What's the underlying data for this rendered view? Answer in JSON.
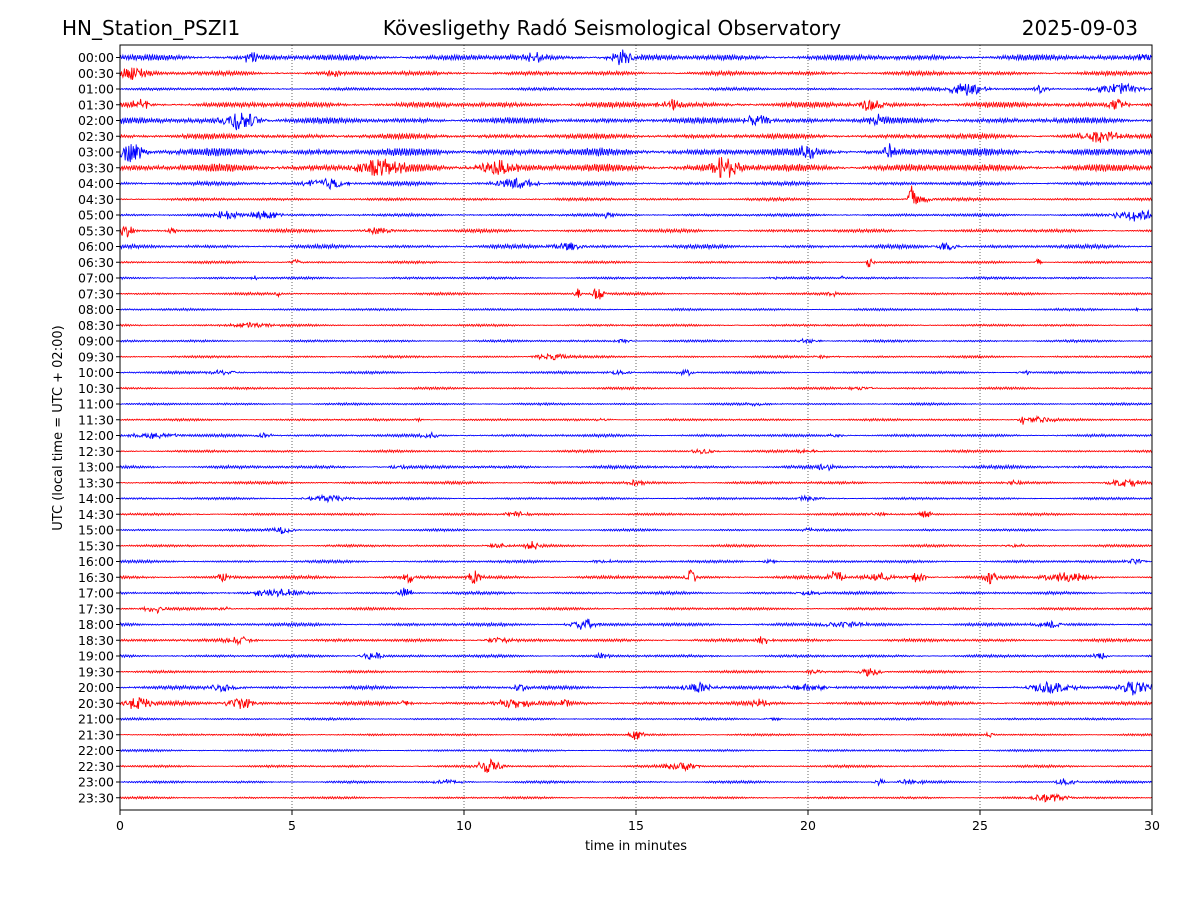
{
  "header": {
    "station": "HN_Station_PSZI1",
    "observatory": "Kövesligethy Radó Seismological Observatory",
    "date": "2025-09-03"
  },
  "chart_data": {
    "type": "line",
    "subtype": "helicorder",
    "title": "Kövesligethy Radó Seismological Observatory",
    "xlabel": "time in minutes",
    "ylabel": "UTC (local time = UTC + 02:00)",
    "xlim": [
      0,
      30
    ],
    "x_ticks": [
      "0",
      "5",
      "10",
      "15",
      "20",
      "25",
      "30"
    ],
    "grid": "vertical dotted lines at 5-minute intervals",
    "trace_colors": [
      "#0000ff",
      "#ff0000"
    ],
    "rows": [
      {
        "label": "00:00",
        "color": "#0000ff",
        "noise": 0.9,
        "events": [
          [
            14.6,
            0.9,
            0.5
          ],
          [
            29.8,
            0.7,
            0.3
          ],
          [
            3.8,
            0.6,
            0.4
          ],
          [
            12,
            0.5,
            0.5
          ]
        ]
      },
      {
        "label": "00:30",
        "color": "#ff0000",
        "noise": 0.5,
        "events": [
          [
            0.4,
            0.8,
            0.6
          ],
          [
            6.2,
            0.4,
            0.3
          ]
        ]
      },
      {
        "label": "01:00",
        "color": "#0000ff",
        "noise": 0.2,
        "events": [
          [
            24.6,
            0.8,
            0.8
          ],
          [
            29,
            0.8,
            0.8
          ],
          [
            26.8,
            0.5,
            0.3
          ]
        ]
      },
      {
        "label": "01:30",
        "color": "#ff0000",
        "noise": 0.8,
        "events": [
          [
            0.6,
            0.6,
            0.4
          ],
          [
            16,
            0.6,
            0.5
          ],
          [
            21.8,
            0.7,
            0.5
          ],
          [
            29,
            0.7,
            0.4
          ]
        ]
      },
      {
        "label": "02:00",
        "color": "#0000ff",
        "noise": 0.9,
        "events": [
          [
            3.5,
            1.3,
            0.7
          ],
          [
            18.5,
            0.7,
            0.5
          ],
          [
            22,
            0.6,
            0.4
          ]
        ]
      },
      {
        "label": "02:30",
        "color": "#ff0000",
        "noise": 0.7,
        "events": [
          [
            28.5,
            0.7,
            0.8
          ]
        ]
      },
      {
        "label": "03:00",
        "color": "#0000ff",
        "noise": 1.3,
        "events": [
          [
            0.3,
            1.2,
            0.6
          ],
          [
            20,
            0.7,
            0.4
          ],
          [
            22.4,
            0.8,
            0.3
          ]
        ]
      },
      {
        "label": "03:30",
        "color": "#ff0000",
        "noise": 1.3,
        "events": [
          [
            17.6,
            1.4,
            0.5
          ],
          [
            7.5,
            1.0,
            1.0
          ],
          [
            11,
            0.9,
            0.8
          ]
        ]
      },
      {
        "label": "04:00",
        "color": "#0000ff",
        "noise": 0.4,
        "events": [
          [
            6,
            0.7,
            0.8
          ],
          [
            11.5,
            0.7,
            0.8
          ]
        ]
      },
      {
        "label": "04:30",
        "color": "#ff0000",
        "noise": 0.2,
        "events": [
          [
            23.05,
            1.9,
            0.18
          ],
          [
            23.3,
            0.4,
            0.4
          ]
        ]
      },
      {
        "label": "05:00",
        "color": "#0000ff",
        "noise": 0.2,
        "events": [
          [
            4.2,
            0.6,
            0.6
          ],
          [
            29.5,
            0.8,
            0.8
          ],
          [
            14.2,
            0.4,
            0.2
          ],
          [
            3.1,
            0.5,
            0.5
          ]
        ]
      },
      {
        "label": "05:30",
        "color": "#ff0000",
        "noise": 0.3,
        "events": [
          [
            0.2,
            0.8,
            0.3
          ],
          [
            1.5,
            0.5,
            0.2
          ],
          [
            7.5,
            0.4,
            0.6
          ]
        ]
      },
      {
        "label": "06:00",
        "color": "#0000ff",
        "noise": 0.4,
        "events": [
          [
            13,
            0.5,
            0.6
          ],
          [
            24,
            0.5,
            0.5
          ]
        ]
      },
      {
        "label": "06:30",
        "color": "#ff0000",
        "noise": 0.1,
        "events": [
          [
            21.8,
            1.0,
            0.12
          ],
          [
            5.1,
            0.4,
            0.2
          ],
          [
            26.7,
            0.5,
            0.12
          ]
        ]
      },
      {
        "label": "07:00",
        "color": "#0000ff",
        "noise": 0.1,
        "events": [
          [
            3.9,
            0.4,
            0.1
          ],
          [
            21,
            0.4,
            0.1
          ],
          [
            19,
            0.2,
            0.2
          ]
        ]
      },
      {
        "label": "07:30",
        "color": "#ff0000",
        "noise": 0.1,
        "events": [
          [
            13.9,
            1.1,
            0.2
          ],
          [
            13.3,
            0.8,
            0.12
          ],
          [
            4.6,
            0.4,
            0.1
          ],
          [
            20.7,
            0.4,
            0.15
          ]
        ]
      },
      {
        "label": "08:00",
        "color": "#0000ff",
        "noise": 0.08,
        "events": [
          [
            29.6,
            0.3,
            0.1
          ]
        ]
      },
      {
        "label": "08:30",
        "color": "#ff0000",
        "noise": 0.08,
        "events": [
          [
            3.8,
            0.35,
            0.8
          ]
        ]
      },
      {
        "label": "09:00",
        "color": "#0000ff",
        "noise": 0.1,
        "events": [
          [
            14.6,
            0.3,
            0.3
          ],
          [
            20,
            0.25,
            0.5
          ]
        ]
      },
      {
        "label": "09:30",
        "color": "#ff0000",
        "noise": 0.08,
        "events": [
          [
            12.5,
            0.45,
            0.7
          ],
          [
            20.5,
            0.2,
            0.5
          ]
        ]
      },
      {
        "label": "10:00",
        "color": "#0000ff",
        "noise": 0.1,
        "events": [
          [
            3,
            0.3,
            0.6
          ],
          [
            14.5,
            0.3,
            0.5
          ],
          [
            16.5,
            0.3,
            0.4
          ],
          [
            26.3,
            0.3,
            0.3
          ]
        ]
      },
      {
        "label": "10:30",
        "color": "#ff0000",
        "noise": 0.06,
        "events": [
          [
            21.5,
            0.15,
            0.6
          ]
        ]
      },
      {
        "label": "11:00",
        "color": "#0000ff",
        "noise": 0.06,
        "events": [
          [
            18.5,
            0.15,
            0.5
          ]
        ]
      },
      {
        "label": "11:30",
        "color": "#ff0000",
        "noise": 0.06,
        "events": [
          [
            26.2,
            1.0,
            0.1
          ],
          [
            26.7,
            0.4,
            0.6
          ],
          [
            8.7,
            0.2,
            0.2
          ],
          [
            14,
            0.2,
            0.3
          ]
        ]
      },
      {
        "label": "12:00",
        "color": "#0000ff",
        "noise": 0.2,
        "events": [
          [
            1,
            0.35,
            0.9
          ],
          [
            9,
            0.45,
            0.3
          ],
          [
            4.2,
            0.4,
            0.3
          ],
          [
            20.8,
            0.3,
            0.3
          ]
        ]
      },
      {
        "label": "12:30",
        "color": "#ff0000",
        "noise": 0.1,
        "events": [
          [
            17,
            0.3,
            0.5
          ],
          [
            20,
            0.2,
            0.5
          ]
        ]
      },
      {
        "label": "13:00",
        "color": "#0000ff",
        "noise": 0.3,
        "events": [
          [
            8.1,
            0.3,
            0.3
          ],
          [
            20.5,
            0.35,
            0.3
          ]
        ]
      },
      {
        "label": "13:30",
        "color": "#ff0000",
        "noise": 0.2,
        "events": [
          [
            15,
            0.4,
            0.3
          ],
          [
            29.2,
            0.5,
            0.6
          ],
          [
            26,
            0.3,
            0.3
          ]
        ]
      },
      {
        "label": "14:00",
        "color": "#0000ff",
        "noise": 0.1,
        "events": [
          [
            6,
            0.4,
            0.8
          ],
          [
            20,
            0.3,
            0.5
          ]
        ]
      },
      {
        "label": "14:30",
        "color": "#ff0000",
        "noise": 0.1,
        "events": [
          [
            11.5,
            0.3,
            0.5
          ],
          [
            23.4,
            0.4,
            0.3
          ],
          [
            22,
            0.2,
            0.5
          ]
        ]
      },
      {
        "label": "15:00",
        "color": "#0000ff",
        "noise": 0.06,
        "events": [
          [
            4.7,
            0.5,
            0.4
          ],
          [
            20,
            0.3,
            0.2
          ]
        ]
      },
      {
        "label": "15:30",
        "color": "#ff0000",
        "noise": 0.1,
        "events": [
          [
            12,
            0.55,
            0.3
          ],
          [
            11,
            0.3,
            0.5
          ],
          [
            26,
            0.2,
            0.4
          ]
        ]
      },
      {
        "label": "16:00",
        "color": "#0000ff",
        "noise": 0.15,
        "events": [
          [
            29.5,
            0.35,
            0.4
          ],
          [
            18.9,
            0.3,
            0.3
          ],
          [
            14,
            0.2,
            0.6
          ]
        ]
      },
      {
        "label": "16:30",
        "color": "#ff0000",
        "noise": 0.3,
        "events": [
          [
            8.4,
            1.0,
            0.2
          ],
          [
            10.3,
            1.1,
            0.25
          ],
          [
            16.6,
            1.1,
            0.25
          ],
          [
            20.8,
            0.9,
            0.35
          ],
          [
            23.2,
            0.8,
            0.3
          ],
          [
            25.3,
            1.0,
            0.25
          ],
          [
            27.5,
            0.6,
            0.9
          ],
          [
            3,
            0.5,
            0.3
          ],
          [
            22,
            0.5,
            0.6
          ]
        ]
      },
      {
        "label": "17:00",
        "color": "#0000ff",
        "noise": 0.2,
        "events": [
          [
            4.5,
            0.5,
            1.0
          ],
          [
            8.3,
            0.7,
            0.3
          ],
          [
            20,
            0.3,
            0.5
          ]
        ]
      },
      {
        "label": "17:30",
        "color": "#ff0000",
        "noise": 0.15,
        "events": [
          [
            1,
            0.55,
            0.4
          ],
          [
            3,
            0.25,
            0.3
          ]
        ]
      },
      {
        "label": "18:00",
        "color": "#0000ff",
        "noise": 0.3,
        "events": [
          [
            13.5,
            0.75,
            0.5
          ],
          [
            21,
            0.4,
            0.8
          ],
          [
            27,
            0.4,
            0.6
          ]
        ]
      },
      {
        "label": "18:30",
        "color": "#ff0000",
        "noise": 0.25,
        "events": [
          [
            11,
            0.45,
            0.5
          ],
          [
            18.7,
            0.5,
            0.3
          ],
          [
            3.5,
            0.4,
            0.5
          ]
        ]
      },
      {
        "label": "19:00",
        "color": "#0000ff",
        "noise": 0.2,
        "events": [
          [
            7.3,
            0.55,
            0.4
          ],
          [
            28.5,
            0.4,
            0.3
          ],
          [
            14,
            0.3,
            0.3
          ]
        ]
      },
      {
        "label": "19:30",
        "color": "#ff0000",
        "noise": 0.1,
        "events": [
          [
            20.2,
            0.5,
            0.3
          ],
          [
            21.8,
            0.6,
            0.4
          ]
        ]
      },
      {
        "label": "20:00",
        "color": "#0000ff",
        "noise": 0.3,
        "events": [
          [
            29.5,
            0.9,
            0.6
          ],
          [
            16.8,
            0.7,
            0.6
          ],
          [
            27,
            0.7,
            0.9
          ],
          [
            11.6,
            0.6,
            0.3
          ],
          [
            20,
            0.5,
            0.8
          ],
          [
            3,
            0.5,
            0.6
          ]
        ]
      },
      {
        "label": "20:30",
        "color": "#ff0000",
        "noise": 0.4,
        "events": [
          [
            0.5,
            0.8,
            0.6
          ],
          [
            3.5,
            0.7,
            0.6
          ],
          [
            11.5,
            0.6,
            0.8
          ],
          [
            12.9,
            0.7,
            0.2
          ],
          [
            18.6,
            0.6,
            0.3
          ],
          [
            8.3,
            0.5,
            0.2
          ]
        ]
      },
      {
        "label": "21:00",
        "color": "#0000ff",
        "noise": 0.05,
        "events": [
          [
            19,
            0.15,
            0.5
          ]
        ]
      },
      {
        "label": "21:30",
        "color": "#ff0000",
        "noise": 0.05,
        "events": [
          [
            15,
            0.7,
            0.3
          ],
          [
            25.3,
            0.3,
            0.2
          ]
        ]
      },
      {
        "label": "22:00",
        "color": "#0000ff",
        "noise": 0.05,
        "events": []
      },
      {
        "label": "22:30",
        "color": "#ff0000",
        "noise": 0.1,
        "events": [
          [
            10.7,
            0.9,
            0.5
          ],
          [
            16.3,
            0.6,
            0.6
          ]
        ]
      },
      {
        "label": "23:00",
        "color": "#0000ff",
        "noise": 0.1,
        "events": [
          [
            22.1,
            0.5,
            0.2
          ],
          [
            27.5,
            0.5,
            0.4
          ],
          [
            9.5,
            0.3,
            0.6
          ],
          [
            23,
            0.3,
            0.5
          ]
        ]
      },
      {
        "label": "23:30",
        "color": "#ff0000",
        "noise": 0.05,
        "events": [
          [
            27,
            0.55,
            0.7
          ]
        ]
      }
    ]
  }
}
